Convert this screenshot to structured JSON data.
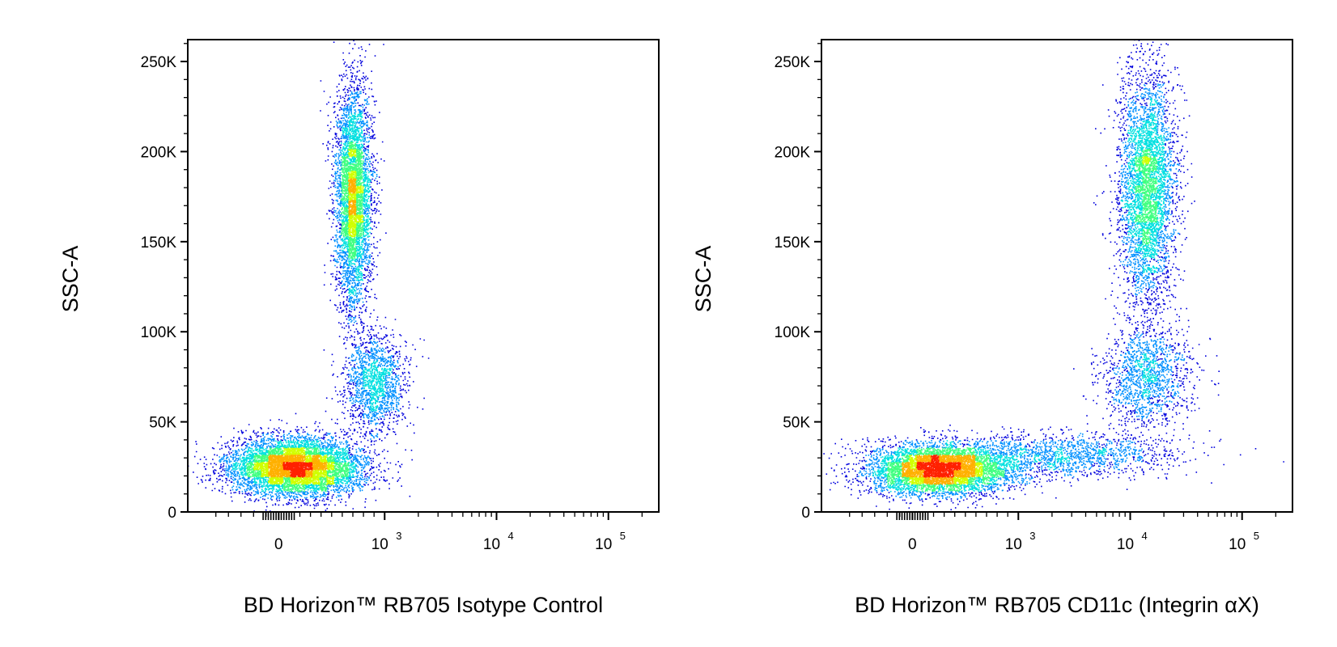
{
  "chart_data": [
    {
      "type": "scatter",
      "style": "density-dot-plot",
      "xlabel": "BD Horizon™ RB705 Isotype Control",
      "ylabel": "SSC-A",
      "xscale": "biexponential",
      "ylim": [
        0,
        262144
      ],
      "y_ticks": [
        {
          "value": 0,
          "label": "0"
        },
        {
          "value": 50000,
          "label": "50K"
        },
        {
          "value": 100000,
          "label": "100K"
        },
        {
          "value": 150000,
          "label": "150K"
        },
        {
          "value": 200000,
          "label": "200K"
        },
        {
          "value": 250000,
          "label": "250K"
        }
      ],
      "x_ticks": [
        {
          "value": 0,
          "base": "0",
          "exp": ""
        },
        {
          "value": 1000,
          "base": "10",
          "exp": "3"
        },
        {
          "value": 10000,
          "base": "10",
          "exp": "4"
        },
        {
          "value": 100000,
          "base": "10",
          "exp": "5"
        }
      ],
      "density_colors": [
        "#0000dd",
        "#0090ff",
        "#00e0e0",
        "#40ff80",
        "#d0ff00",
        "#ffb000",
        "#ff2000"
      ],
      "populations": [
        {
          "x_center": 150,
          "x_spread": 0.33,
          "y_center": 25000,
          "y_spread": 8000,
          "events": 7000
        },
        {
          "x_center": 700,
          "x_spread": 0.09,
          "y_center": 175000,
          "y_spread": 30000,
          "events": 4800
        },
        {
          "x_center": 900,
          "x_spread": 0.15,
          "y_center": 72000,
          "y_spread": 14000,
          "events": 1600
        }
      ]
    },
    {
      "type": "scatter",
      "style": "density-dot-plot",
      "xlabel": "BD Horizon™ RB705 CD11c (Integrin αX)",
      "ylabel": "SSC-A",
      "xscale": "biexponential",
      "ylim": [
        0,
        262144
      ],
      "y_ticks": [
        {
          "value": 0,
          "label": "0"
        },
        {
          "value": 50000,
          "label": "50K"
        },
        {
          "value": 100000,
          "label": "100K"
        },
        {
          "value": 150000,
          "label": "150K"
        },
        {
          "value": 200000,
          "label": "200K"
        },
        {
          "value": 250000,
          "label": "250K"
        }
      ],
      "x_ticks": [
        {
          "value": 0,
          "base": "0",
          "exp": ""
        },
        {
          "value": 1000,
          "base": "10",
          "exp": "3"
        },
        {
          "value": 10000,
          "base": "10",
          "exp": "4"
        },
        {
          "value": 100000,
          "base": "10",
          "exp": "5"
        }
      ],
      "density_colors": [
        "#0000dd",
        "#0090ff",
        "#00e0e0",
        "#40ff80",
        "#d0ff00",
        "#ffb000",
        "#ff2000"
      ],
      "populations": [
        {
          "x_center": 250,
          "x_spread": 0.35,
          "y_center": 24000,
          "y_spread": 7000,
          "events": 6000
        },
        {
          "x_center": 2500,
          "x_spread": 0.55,
          "y_center": 32000,
          "y_spread": 6000,
          "events": 1500
        },
        {
          "x_center": 14000,
          "x_spread": 0.14,
          "y_center": 180000,
          "y_spread": 32000,
          "events": 4500
        },
        {
          "x_center": 14000,
          "x_spread": 0.22,
          "y_center": 75000,
          "y_spread": 14000,
          "events": 1500
        }
      ]
    }
  ]
}
